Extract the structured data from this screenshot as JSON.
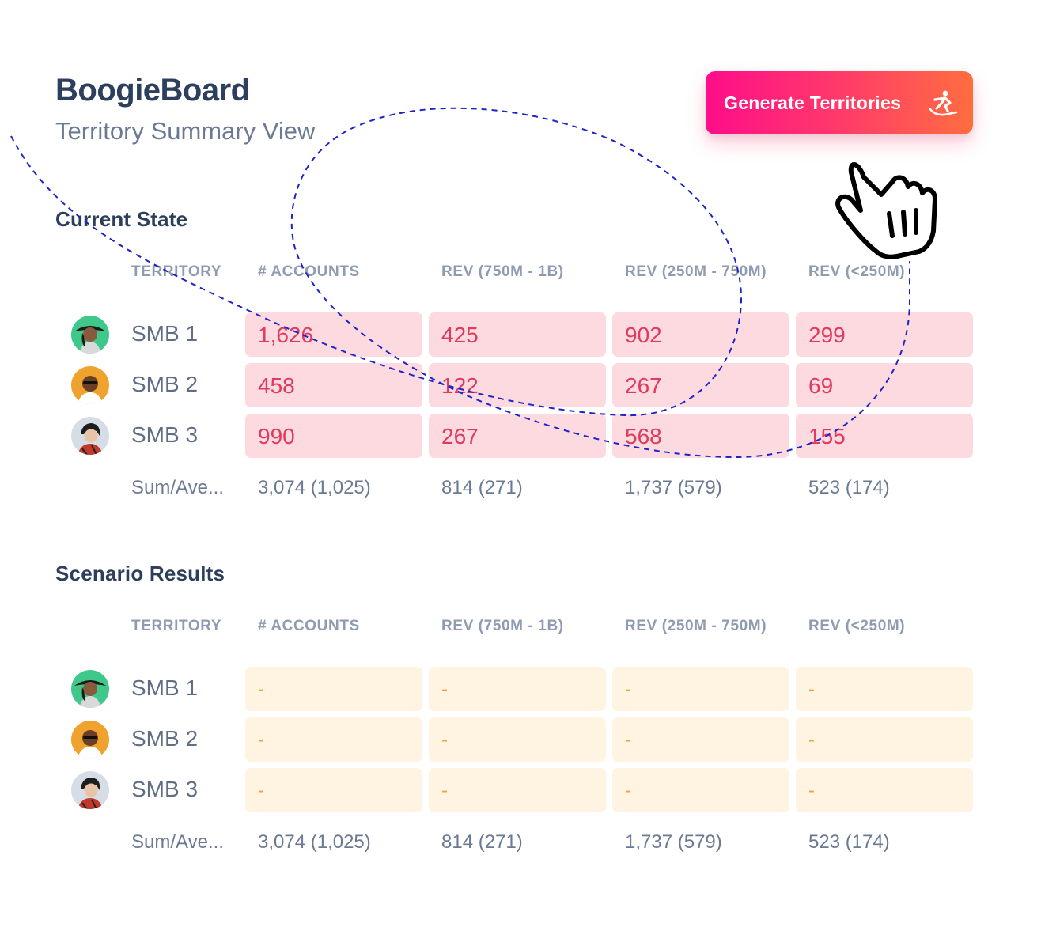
{
  "app": {
    "title": "BoogieBoard",
    "subtitle": "Territory Summary View"
  },
  "generate_button": {
    "label": "Generate Territories",
    "icon": "snowboarder-icon"
  },
  "columns": [
    "TERRITORY",
    "#  ACCOUNTS",
    "REV (750M - 1B)",
    "REV (250M - 750M)",
    "REV (<250M)"
  ],
  "current": {
    "title": "Current State",
    "rows": [
      {
        "label": "SMB 1",
        "values": [
          "1,626",
          "425",
          "902",
          "299"
        ]
      },
      {
        "label": "SMB 2",
        "values": [
          "458",
          "122",
          "267",
          "69"
        ]
      },
      {
        "label": "SMB 3",
        "values": [
          "990",
          "267",
          "568",
          "155"
        ]
      }
    ],
    "summary": {
      "label": "Sum/Ave...",
      "values": [
        "3,074 (1,025)",
        "814 (271)",
        "1,737 (579)",
        "523 (174)"
      ]
    }
  },
  "scenario": {
    "title": "Scenario Results",
    "rows": [
      {
        "label": "SMB 1",
        "values": [
          "-",
          "-",
          "-",
          "-"
        ]
      },
      {
        "label": "SMB 2",
        "values": [
          "-",
          "-",
          "-",
          "-"
        ]
      },
      {
        "label": "SMB 3",
        "values": [
          "-",
          "-",
          "-",
          "-"
        ]
      }
    ],
    "summary": {
      "label": "Sum/Ave...",
      "values": [
        "3,074 (1,025)",
        "814 (271)",
        "1,737 (579)",
        "523 (174)"
      ]
    }
  },
  "colors": {
    "accent_gradient_start": "#ff0d8a",
    "accent_gradient_end": "#ff6d3f",
    "current_cell_bg": "#fdd9e0",
    "current_cell_text": "#e03a5d",
    "scenario_cell_bg": "#fff4e2",
    "scenario_cell_text": "#f0a23a",
    "dashed_line": "#1c24c8"
  }
}
